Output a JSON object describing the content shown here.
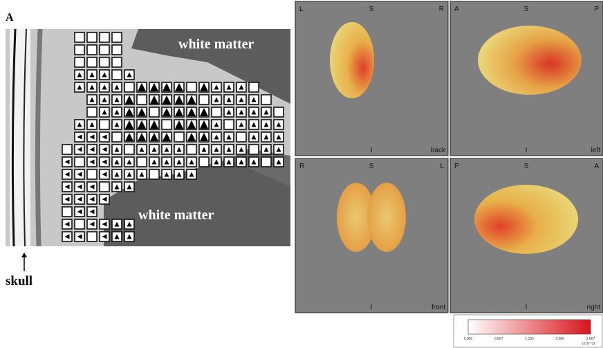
{
  "panel_a": {
    "label": "A",
    "annotations": [
      "white matter",
      "white matter"
    ],
    "skull_label": "skull"
  },
  "views": [
    {
      "top_left": "L",
      "top_center": "S",
      "top_right": "R",
      "bottom_center": "I",
      "bottom_right": "back"
    },
    {
      "top_left": "A",
      "top_center": "S",
      "top_right": "P",
      "bottom_center": "I",
      "bottom_right": "left"
    },
    {
      "top_left": "R",
      "top_center": "S",
      "top_right": "L",
      "bottom_center": "I",
      "bottom_right": "front"
    },
    {
      "top_left": "P",
      "top_center": "S",
      "top_right": "A",
      "bottom_center": "I",
      "bottom_right": "right"
    }
  ],
  "colorbar": {
    "ticks": [
      "0.000",
      "0.667",
      "1.333",
      "2.000",
      "2.667"
    ],
    "unit": "(x10^-3)"
  }
}
